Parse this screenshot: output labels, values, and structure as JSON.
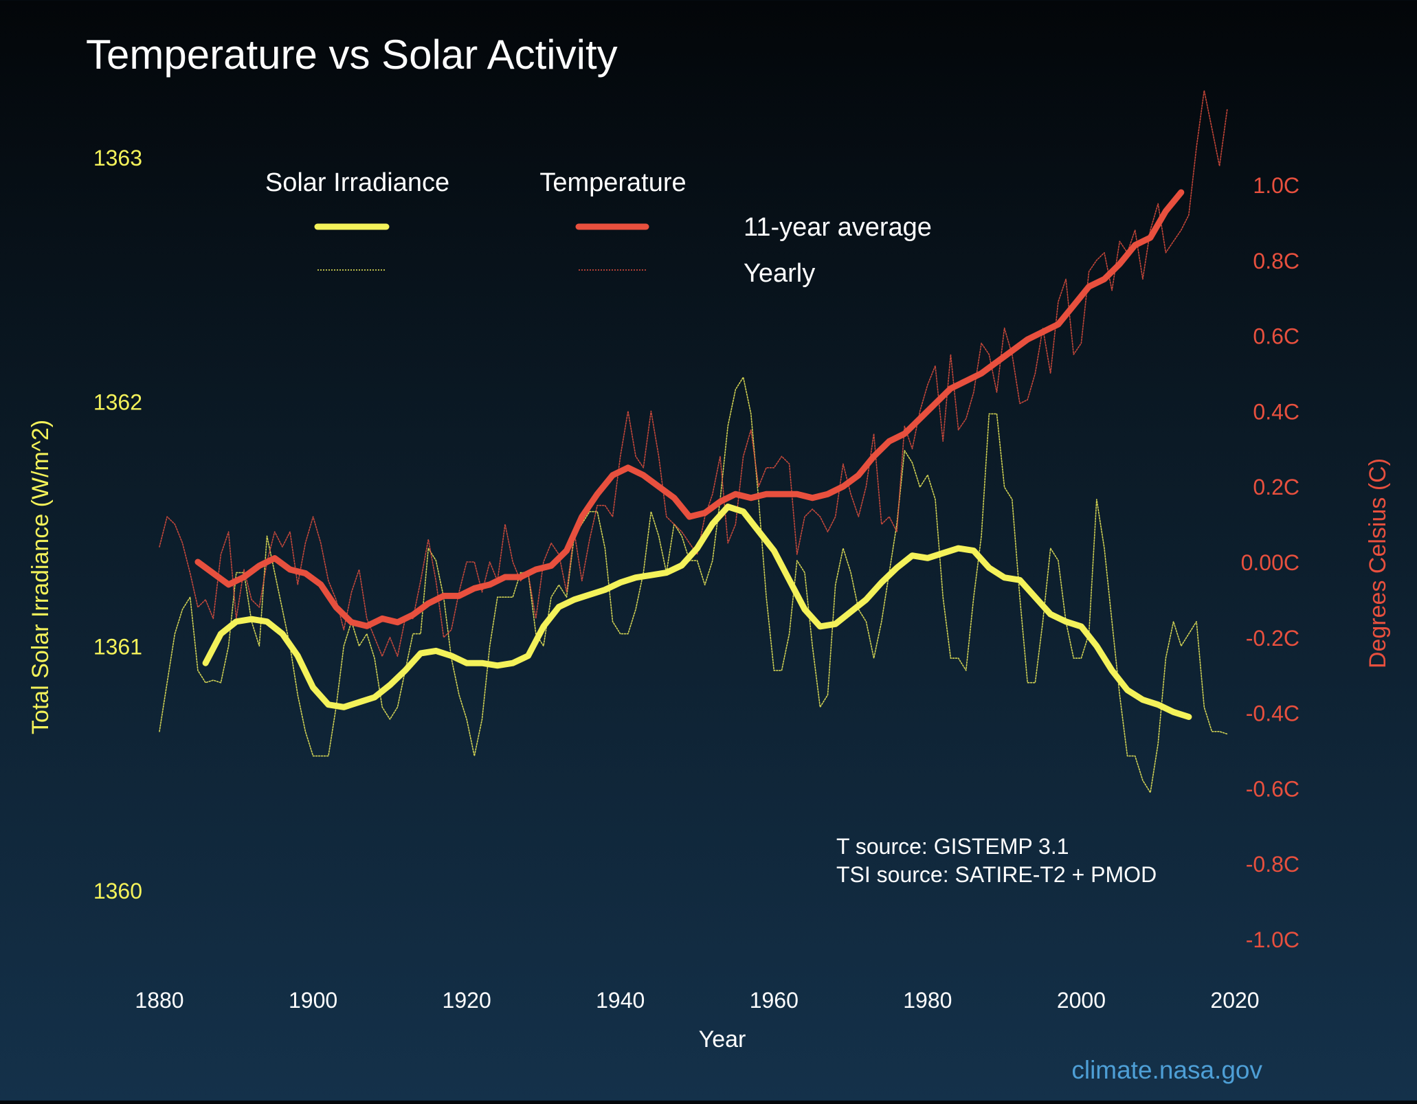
{
  "chart_data": {
    "type": "line",
    "title": "Temperature vs Solar Activity",
    "xlabel": "Year",
    "ylabel_left": "Total Solar Irradiance (W/m^2)",
    "ylabel_right": "Degrees Celsius (C)",
    "xlim": [
      1880,
      2020
    ],
    "ylim_left": [
      1360,
      1363
    ],
    "ylim_right": [
      -1.0,
      1.0
    ],
    "x_ticks": [
      "1880",
      "1900",
      "1920",
      "1940",
      "1960",
      "1980",
      "2000",
      "2020"
    ],
    "left_ticks": [
      {
        "value": 1363,
        "label": "1363"
      },
      {
        "value": 1362,
        "label": "1362"
      },
      {
        "value": 1361,
        "label": "1361"
      },
      {
        "value": 1360,
        "label": "1360"
      }
    ],
    "right_ticks": [
      {
        "value": 1.0,
        "label": "1.0C"
      },
      {
        "value": 0.8,
        "label": "0.8C"
      },
      {
        "value": 0.6,
        "label": "0.6C"
      },
      {
        "value": 0.4,
        "label": "0.4C"
      },
      {
        "value": 0.2,
        "label": "0.2C"
      },
      {
        "value": 0.0,
        "label": "0.00C"
      },
      {
        "value": -0.2,
        "label": "-0.2C"
      },
      {
        "value": -0.4,
        "label": "-0.4C"
      },
      {
        "value": -0.6,
        "label": "-0.6C"
      },
      {
        "value": -0.8,
        "label": "-0.8C"
      },
      {
        "value": -1.0,
        "label": "-1.0C"
      }
    ],
    "legend": {
      "col1": "Solar Irradiance",
      "col2": "Temperature",
      "row1": "11-year average",
      "row2": "Yearly"
    },
    "annotations": [
      "T source: GISTEMP 3.1",
      "TSI source: SATIRE-T2 + PMOD"
    ],
    "credit": "climate.nasa.gov",
    "colors": {
      "solar": "#f4f25a",
      "temperature": "#e8503e",
      "right_axis": "#e8503e",
      "left_axis": "#f4f25a",
      "credit": "#4e9fd6"
    },
    "series": [
      {
        "name": "Solar Irradiance 11-year average",
        "axis": "left",
        "color": "#f4f25a",
        "style": "thick",
        "x": [
          1886,
          1888,
          1890,
          1892,
          1894,
          1896,
          1898,
          1900,
          1902,
          1904,
          1906,
          1908,
          1910,
          1912,
          1914,
          1916,
          1918,
          1920,
          1922,
          1924,
          1926,
          1928,
          1930,
          1932,
          1934,
          1936,
          1938,
          1940,
          1942,
          1944,
          1946,
          1948,
          1950,
          1952,
          1954,
          1956,
          1958,
          1960,
          1962,
          1964,
          1966,
          1968,
          1970,
          1972,
          1974,
          1976,
          1978,
          1980,
          1982,
          1984,
          1986,
          1988,
          1990,
          1992,
          1994,
          1996,
          1998,
          2000,
          2002,
          2004,
          2006,
          2008,
          2010,
          2012,
          2014
        ],
        "y": [
          1360.93,
          1361.05,
          1361.1,
          1361.11,
          1361.1,
          1361.05,
          1360.96,
          1360.83,
          1360.76,
          1360.75,
          1360.77,
          1360.79,
          1360.84,
          1360.9,
          1360.97,
          1360.98,
          1360.96,
          1360.93,
          1360.93,
          1360.92,
          1360.93,
          1360.96,
          1361.08,
          1361.16,
          1361.19,
          1361.21,
          1361.23,
          1361.26,
          1361.28,
          1361.29,
          1361.3,
          1361.33,
          1361.4,
          1361.5,
          1361.57,
          1361.55,
          1361.47,
          1361.39,
          1361.27,
          1361.15,
          1361.08,
          1361.09,
          1361.14,
          1361.19,
          1361.26,
          1361.32,
          1361.37,
          1361.36,
          1361.38,
          1361.4,
          1361.39,
          1361.32,
          1361.28,
          1361.27,
          1361.2,
          1361.13,
          1361.1,
          1361.08,
          1361.0,
          1360.9,
          1360.82,
          1360.78,
          1360.76,
          1360.73,
          1360.71
        ]
      },
      {
        "name": "Solar Irradiance Yearly",
        "axis": "left",
        "color": "#f4f25a",
        "style": "thin",
        "x": [
          1880,
          1881,
          1882,
          1883,
          1884,
          1885,
          1886,
          1887,
          1888,
          1889,
          1890,
          1891,
          1892,
          1893,
          1894,
          1895,
          1896,
          1897,
          1898,
          1899,
          1900,
          1901,
          1902,
          1903,
          1904,
          1905,
          1906,
          1907,
          1908,
          1909,
          1910,
          1911,
          1912,
          1913,
          1914,
          1915,
          1916,
          1917,
          1918,
          1919,
          1920,
          1921,
          1922,
          1923,
          1924,
          1925,
          1926,
          1927,
          1928,
          1929,
          1930,
          1931,
          1932,
          1933,
          1934,
          1935,
          1936,
          1937,
          1938,
          1939,
          1940,
          1941,
          1942,
          1943,
          1944,
          1945,
          1946,
          1947,
          1948,
          1949,
          1950,
          1951,
          1952,
          1953,
          1954,
          1955,
          1956,
          1957,
          1958,
          1959,
          1960,
          1961,
          1962,
          1963,
          1964,
          1965,
          1966,
          1967,
          1968,
          1969,
          1970,
          1971,
          1972,
          1973,
          1974,
          1975,
          1976,
          1977,
          1978,
          1979,
          1980,
          1981,
          1982,
          1983,
          1984,
          1985,
          1986,
          1987,
          1988,
          1989,
          1990,
          1991,
          1992,
          1993,
          1994,
          1995,
          1996,
          1997,
          1998,
          1999,
          2000,
          2001,
          2002,
          2003,
          2004,
          2005,
          2006,
          2007,
          2008,
          2009,
          2010,
          2011,
          2012,
          2013,
          2014,
          2015,
          2016,
          2017,
          2018,
          2019
        ],
        "y": [
          1360.65,
          1360.85,
          1361.05,
          1361.15,
          1361.2,
          1360.9,
          1360.85,
          1360.86,
          1360.85,
          1361.0,
          1361.3,
          1361.3,
          1361.1,
          1361.0,
          1361.45,
          1361.3,
          1361.15,
          1361.0,
          1360.8,
          1360.65,
          1360.55,
          1360.55,
          1360.55,
          1360.75,
          1361.0,
          1361.1,
          1361.0,
          1361.05,
          1360.95,
          1360.75,
          1360.7,
          1360.75,
          1360.9,
          1361.05,
          1361.05,
          1361.4,
          1361.35,
          1361.2,
          1360.95,
          1360.8,
          1360.7,
          1360.55,
          1360.7,
          1361.0,
          1361.2,
          1361.2,
          1361.2,
          1361.3,
          1361.3,
          1361.05,
          1361.0,
          1361.2,
          1361.25,
          1361.2,
          1361.45,
          1361.5,
          1361.55,
          1361.55,
          1361.4,
          1361.1,
          1361.05,
          1361.05,
          1361.15,
          1361.3,
          1361.55,
          1361.45,
          1361.3,
          1361.5,
          1361.45,
          1361.35,
          1361.35,
          1361.25,
          1361.35,
          1361.6,
          1361.9,
          1362.05,
          1362.1,
          1361.95,
          1361.6,
          1361.2,
          1360.9,
          1360.9,
          1361.05,
          1361.35,
          1361.3,
          1361.0,
          1360.75,
          1360.8,
          1361.25,
          1361.4,
          1361.3,
          1361.15,
          1361.1,
          1360.95,
          1361.1,
          1361.3,
          1361.5,
          1361.8,
          1361.75,
          1361.65,
          1361.7,
          1361.6,
          1361.2,
          1360.95,
          1360.95,
          1360.9,
          1361.2,
          1361.45,
          1361.95,
          1361.95,
          1361.65,
          1361.6,
          1361.2,
          1360.85,
          1360.85,
          1361.1,
          1361.4,
          1361.35,
          1361.1,
          1360.95,
          1360.95,
          1361.05,
          1361.6,
          1361.4,
          1361.1,
          1360.8,
          1360.55,
          1360.55,
          1360.45,
          1360.4,
          1360.6,
          1360.95,
          1361.1,
          1361.0,
          1361.05,
          1361.1,
          1360.75,
          1360.65,
          1360.65,
          1360.64
        ]
      },
      {
        "name": "Temperature 11-year average",
        "axis": "right",
        "color": "#e8503e",
        "style": "thick",
        "x": [
          1885,
          1887,
          1889,
          1891,
          1893,
          1895,
          1897,
          1899,
          1901,
          1903,
          1905,
          1907,
          1909,
          1911,
          1913,
          1915,
          1917,
          1919,
          1921,
          1923,
          1925,
          1927,
          1929,
          1931,
          1933,
          1935,
          1937,
          1939,
          1941,
          1943,
          1945,
          1947,
          1949,
          1951,
          1953,
          1955,
          1957,
          1959,
          1961,
          1963,
          1965,
          1967,
          1969,
          1971,
          1973,
          1975,
          1977,
          1979,
          1981,
          1983,
          1985,
          1987,
          1989,
          1991,
          1993,
          1995,
          1997,
          1999,
          2001,
          2003,
          2005,
          2007,
          2009,
          2011,
          2013
        ],
        "y": [
          0.0,
          -0.03,
          -0.06,
          -0.04,
          -0.01,
          0.01,
          -0.02,
          -0.03,
          -0.06,
          -0.12,
          -0.16,
          -0.17,
          -0.15,
          -0.16,
          -0.14,
          -0.11,
          -0.09,
          -0.09,
          -0.07,
          -0.06,
          -0.04,
          -0.04,
          -0.02,
          -0.01,
          0.03,
          0.12,
          0.18,
          0.23,
          0.25,
          0.23,
          0.2,
          0.17,
          0.12,
          0.13,
          0.16,
          0.18,
          0.17,
          0.18,
          0.18,
          0.18,
          0.17,
          0.18,
          0.2,
          0.23,
          0.28,
          0.32,
          0.34,
          0.38,
          0.42,
          0.46,
          0.48,
          0.5,
          0.53,
          0.56,
          0.59,
          0.61,
          0.63,
          0.68,
          0.73,
          0.75,
          0.79,
          0.84,
          0.86,
          0.93,
          0.98
        ]
      },
      {
        "name": "Temperature Yearly",
        "axis": "right",
        "color": "#e8503e",
        "style": "thin",
        "x": [
          1880,
          1881,
          1882,
          1883,
          1884,
          1885,
          1886,
          1887,
          1888,
          1889,
          1890,
          1891,
          1892,
          1893,
          1894,
          1895,
          1896,
          1897,
          1898,
          1899,
          1900,
          1901,
          1902,
          1903,
          1904,
          1905,
          1906,
          1907,
          1908,
          1909,
          1910,
          1911,
          1912,
          1913,
          1914,
          1915,
          1916,
          1917,
          1918,
          1919,
          1920,
          1921,
          1922,
          1923,
          1924,
          1925,
          1926,
          1927,
          1928,
          1929,
          1930,
          1931,
          1932,
          1933,
          1934,
          1935,
          1936,
          1937,
          1938,
          1939,
          1940,
          1941,
          1942,
          1943,
          1944,
          1945,
          1946,
          1947,
          1948,
          1949,
          1950,
          1951,
          1952,
          1953,
          1954,
          1955,
          1956,
          1957,
          1958,
          1959,
          1960,
          1961,
          1962,
          1963,
          1964,
          1965,
          1966,
          1967,
          1968,
          1969,
          1970,
          1971,
          1972,
          1973,
          1974,
          1975,
          1976,
          1977,
          1978,
          1979,
          1980,
          1981,
          1982,
          1983,
          1984,
          1985,
          1986,
          1987,
          1988,
          1989,
          1990,
          1991,
          1992,
          1993,
          1994,
          1995,
          1996,
          1997,
          1998,
          1999,
          2000,
          2001,
          2002,
          2003,
          2004,
          2005,
          2006,
          2007,
          2008,
          2009,
          2010,
          2011,
          2012,
          2013,
          2014,
          2015,
          2016,
          2017,
          2018,
          2019
        ],
        "y": [
          0.04,
          0.12,
          0.1,
          0.05,
          -0.03,
          -0.12,
          -0.1,
          -0.15,
          0.02,
          0.08,
          -0.15,
          -0.02,
          -0.1,
          -0.12,
          0.0,
          0.08,
          0.04,
          0.08,
          -0.06,
          0.05,
          0.12,
          0.05,
          -0.05,
          -0.1,
          -0.18,
          -0.08,
          -0.02,
          -0.15,
          -0.2,
          -0.25,
          -0.2,
          -0.25,
          -0.15,
          -0.15,
          -0.05,
          0.06,
          -0.05,
          -0.2,
          -0.18,
          -0.08,
          0.0,
          0.0,
          -0.08,
          0.0,
          -0.05,
          0.1,
          0.0,
          -0.05,
          -0.03,
          -0.15,
          0.0,
          0.05,
          0.02,
          -0.08,
          0.08,
          -0.05,
          0.06,
          0.15,
          0.15,
          0.12,
          0.28,
          0.4,
          0.28,
          0.25,
          0.4,
          0.28,
          0.12,
          0.1,
          0.08,
          0.05,
          0.02,
          0.12,
          0.18,
          0.28,
          0.05,
          0.1,
          0.28,
          0.35,
          0.2,
          0.25,
          0.25,
          0.28,
          0.26,
          0.02,
          0.12,
          0.14,
          0.12,
          0.08,
          0.12,
          0.26,
          0.18,
          0.12,
          0.2,
          0.34,
          0.1,
          0.12,
          0.08,
          0.36,
          0.3,
          0.4,
          0.47,
          0.52,
          0.32,
          0.55,
          0.35,
          0.38,
          0.45,
          0.58,
          0.55,
          0.45,
          0.62,
          0.55,
          0.42,
          0.43,
          0.5,
          0.62,
          0.5,
          0.69,
          0.75,
          0.55,
          0.58,
          0.77,
          0.8,
          0.82,
          0.72,
          0.85,
          0.82,
          0.88,
          0.75,
          0.88,
          0.95,
          0.82,
          0.85,
          0.88,
          0.92,
          1.1,
          1.25,
          1.15,
          1.05,
          1.2
        ]
      }
    ]
  }
}
